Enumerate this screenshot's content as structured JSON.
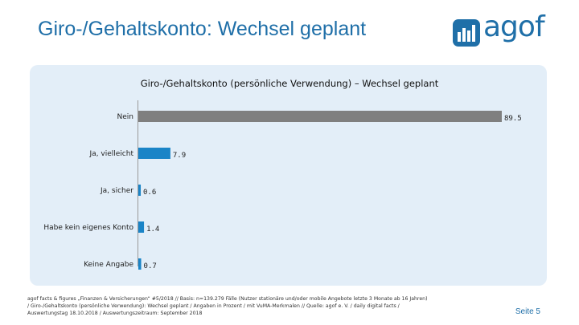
{
  "slide": {
    "title": "Giro-/Gehaltskonto: Wechsel geplant",
    "logo_text": "agof",
    "page_label": "Seite 5",
    "footnote": [
      "agof facts & figures „Finanzen & Versicherungen“ #5/2018 // Basis: n=139.279 Fälle (Nutzer stationäre und/oder mobile Angebote letzte 3 Monate ab 16 Jahren)",
      "/ Giro-/Gehaltskonto (persönliche Verwendung): Wechsel geplant / Angaben in Prozent / mit VuMA-Merkmalen // Quelle: agof e. V. / daily digital facts /",
      "Auswertungstag 18.10.2018 / Auswertungszeitraum: September 2018"
    ]
  },
  "colors": {
    "accent": "#1f6fa8",
    "bar_nein": "#7f7f7f",
    "bar_other": "#1a84c7",
    "panel": "#e3eef8"
  },
  "chart_data": {
    "type": "bar",
    "orientation": "horizontal",
    "title": "Giro-/Gehaltskonto (persönliche Verwendung) – Wechsel geplant",
    "categories": [
      "Nein",
      "Ja, vielleicht",
      "Ja, sicher",
      "Habe kein eigenes Konto",
      "Keine Angabe"
    ],
    "values": [
      89.5,
      7.9,
      0.6,
      1.4,
      0.7
    ],
    "value_labels": [
      "89.5",
      "7.9",
      "0.6",
      "1.4",
      "0.7"
    ],
    "xlim": [
      0,
      100
    ],
    "unit": "Prozent",
    "grid": false,
    "legend": "none"
  }
}
